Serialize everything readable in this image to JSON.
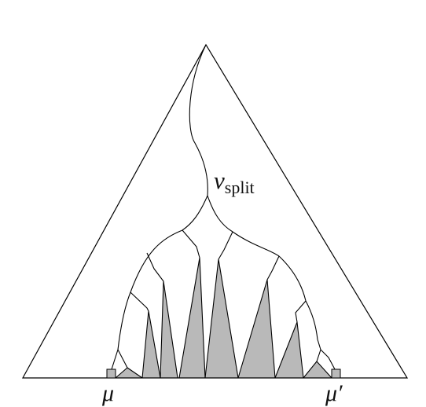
{
  "labels": {
    "split_symbol": "ν",
    "split_subscript": "split",
    "mu": "μ",
    "mu_prime": "μ′"
  },
  "colors": {
    "stroke": "#000000",
    "fill_gray": "#b9b9b9",
    "background": "#ffffff"
  }
}
